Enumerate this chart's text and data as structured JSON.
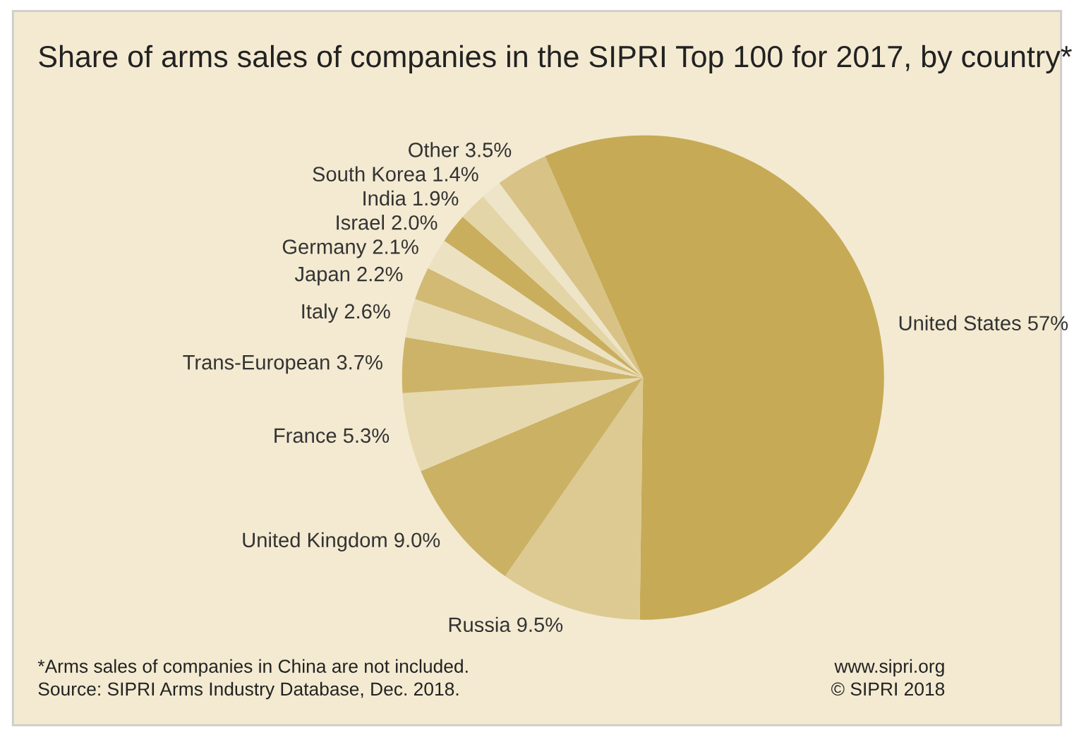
{
  "chart_data": {
    "type": "pie",
    "title": "Share of arms sales of companies in the SIPRI Top 100 for 2017, by country*",
    "categories": [
      "United States",
      "Russia",
      "United Kingdom",
      "France",
      "Trans-European",
      "Italy",
      "Japan",
      "Germany",
      "Israel",
      "India",
      "South Korea",
      "Other"
    ],
    "values": [
      57,
      9.5,
      9.0,
      5.3,
      3.7,
      2.6,
      2.2,
      2.1,
      2.0,
      1.9,
      1.4,
      3.5
    ],
    "value_labels": [
      "57%",
      "9.5%",
      "9.0%",
      "5.3%",
      "3.7%",
      "2.6%",
      "2.2%",
      "2.1%",
      "2.0%",
      "1.9%",
      "1.4%",
      "3.5%"
    ],
    "colors": [
      "#c6aa55",
      "#ddca92",
      "#cbb163",
      "#e6d9af",
      "#cdb368",
      "#e9ddb8",
      "#d2ba75",
      "#ece2c2",
      "#c9ae5e",
      "#e3d5a6",
      "#eee5c8",
      "#d8c286"
    ],
    "annotations": [
      "*Arms sales of companies in China are not included.\nSource: SIPRI Arms Industry Database, Dec. 2018.",
      "www.sipri.org\n© SIPRI 2018"
    ]
  }
}
